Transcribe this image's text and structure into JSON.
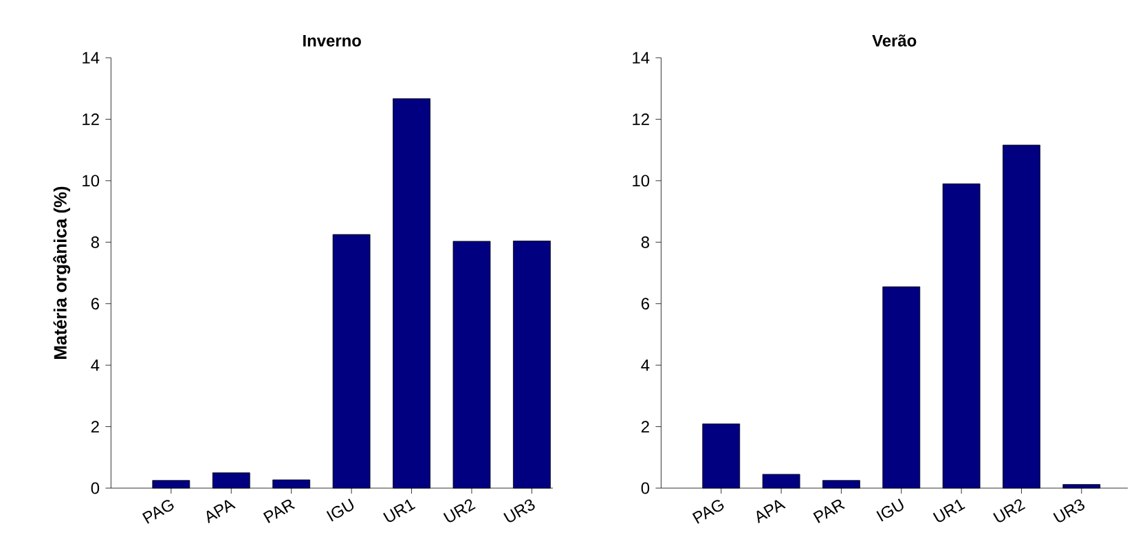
{
  "chart_data": [
    {
      "type": "bar",
      "title": "Inverno",
      "ylabel": "Matéria orgânica (%)",
      "categories": [
        "PAG",
        "APA",
        "PAR",
        "IGU",
        "UR1",
        "UR2",
        "UR3"
      ],
      "values": [
        0.25,
        0.5,
        0.27,
        8.25,
        12.67,
        8.03,
        8.04
      ],
      "color": "#000080",
      "ylim": [
        0,
        14
      ],
      "yticks": [
        0,
        2,
        4,
        6,
        8,
        10,
        12,
        14
      ],
      "grid": false
    },
    {
      "type": "bar",
      "title": "Verão",
      "categories": [
        "PAG",
        "APA",
        "PAR",
        "IGU",
        "UR1",
        "UR2",
        "UR3"
      ],
      "values": [
        2.09,
        0.45,
        0.25,
        6.55,
        9.9,
        11.16,
        0.12
      ],
      "color": "#000080",
      "ylim": [
        0,
        14
      ],
      "yticks": [
        0,
        2,
        4,
        6,
        8,
        10,
        12,
        14
      ],
      "grid": false
    }
  ]
}
